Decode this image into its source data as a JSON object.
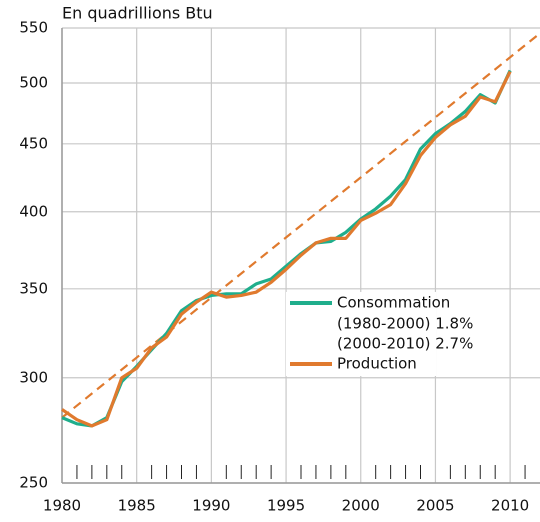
{
  "chart_data": {
    "type": "line",
    "title": "En quadrillions Btu",
    "x": [
      1980,
      1981,
      1982,
      1983,
      1984,
      1985,
      1986,
      1987,
      1988,
      1989,
      1990,
      1991,
      1992,
      1993,
      1994,
      1995,
      1996,
      1997,
      1998,
      1999,
      2000,
      2001,
      2002,
      2003,
      2004,
      2005,
      2006,
      2007,
      2008,
      2009,
      2010
    ],
    "series": [
      {
        "name": "Consommation",
        "legend_lines": [
          "(1980-2000) 1.8%",
          "(2000-2010) 2.7%"
        ],
        "color": "#1fae8c",
        "values": [
          280,
          277,
          276,
          280,
          298,
          306,
          315,
          324,
          337,
          343,
          346,
          347,
          347,
          353,
          356,
          364,
          372,
          379,
          380,
          386,
          395,
          402,
          411,
          423,
          446,
          458,
          466,
          476,
          490,
          483,
          511
        ]
      },
      {
        "name": "Production",
        "color": "#e07a2e",
        "values": [
          284,
          279,
          276,
          279,
          300,
          305,
          316,
          322,
          335,
          342,
          348,
          345,
          346,
          348,
          354,
          362,
          371,
          379,
          382,
          382,
          394,
          399,
          405,
          420,
          441,
          455,
          465,
          472,
          488,
          484,
          510
        ]
      }
    ],
    "reference_line": {
      "x": [
        1980,
        2012
      ],
      "values": [
        280,
        545
      ],
      "color": "#e07a2e",
      "dashed": true
    },
    "xlim": [
      1980,
      2012
    ],
    "xticks": [
      1980,
      1985,
      1990,
      1995,
      2000,
      2005,
      2010
    ],
    "xminorticks": [
      1981,
      1982,
      1983,
      1984,
      1986,
      1987,
      1988,
      1989,
      1991,
      1992,
      1993,
      1994,
      1996,
      1997,
      1998,
      1999,
      2001,
      2002,
      2003,
      2004,
      2006,
      2007,
      2008,
      2009,
      2011
    ],
    "ylim": [
      250,
      550
    ],
    "yticks": [
      250,
      300,
      350,
      400,
      450,
      500,
      550
    ],
    "log_y": true,
    "grid": true
  }
}
